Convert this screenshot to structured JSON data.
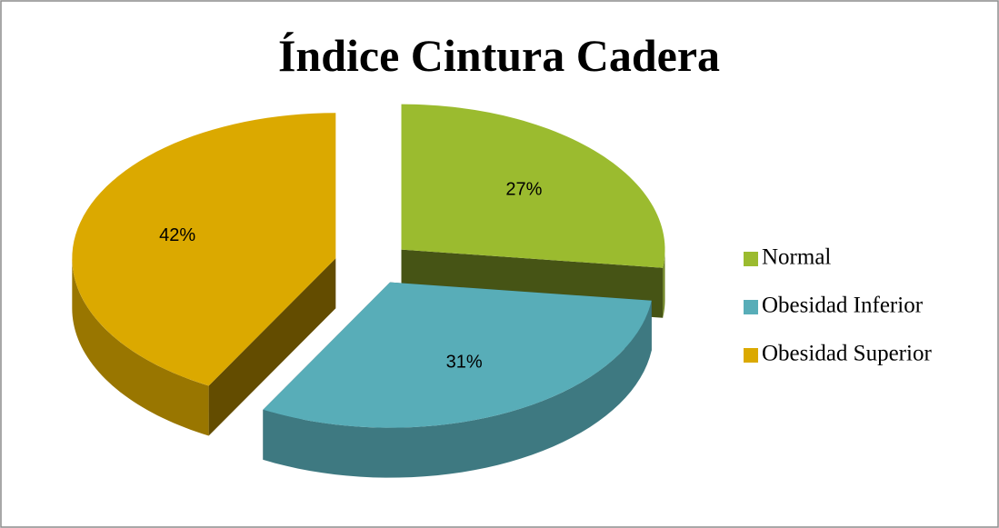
{
  "chart_data": {
    "type": "pie",
    "title": "Índice Cintura Cadera",
    "categories": [
      "Normal",
      "Obesidad Inferior",
      "Obesidad Superior"
    ],
    "values": [
      27,
      31,
      42
    ],
    "value_labels": [
      "27%",
      "31%",
      "42%"
    ],
    "colors": [
      "#9bbb2f",
      "#58adb8",
      "#dba900"
    ],
    "legend": "right"
  }
}
